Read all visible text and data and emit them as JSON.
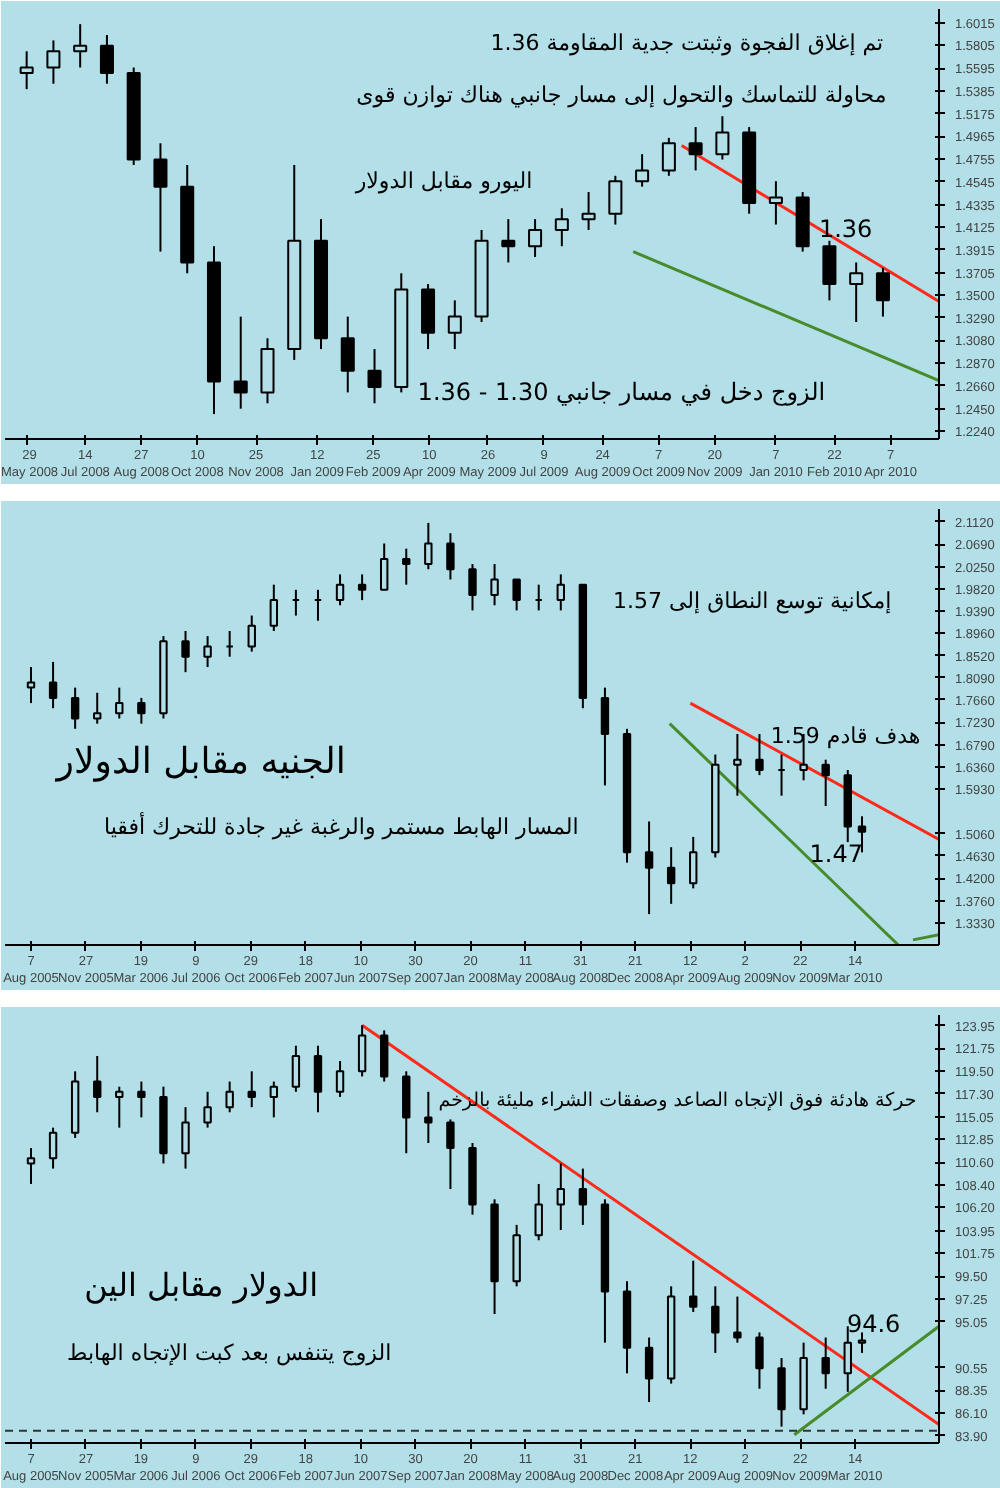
{
  "chart_data": [
    {
      "type": "candlestick",
      "color": "#000000",
      "x": [
        "2008-05-29",
        "2008-06-19",
        "2008-07-10",
        "2008-07-31",
        "2008-08-21",
        "2008-09-11",
        "2008-10-02",
        "2008-10-23",
        "2008-11-13",
        "2008-12-04",
        "2008-12-25",
        "2009-01-15",
        "2009-02-05",
        "2009-02-26",
        "2009-03-19",
        "2009-04-09",
        "2009-04-30",
        "2009-05-21",
        "2009-06-11",
        "2009-07-02",
        "2009-07-23",
        "2009-08-13",
        "2009-09-03",
        "2009-09-24",
        "2009-10-15",
        "2009-11-05",
        "2009-11-26",
        "2009-12-17",
        "2010-01-07",
        "2010-01-28",
        "2010-02-18",
        "2010-03-11",
        "2010-04-01"
      ],
      "ohlc": [
        [
          1.555,
          1.575,
          1.54,
          1.56
        ],
        [
          1.56,
          1.585,
          1.545,
          1.575
        ],
        [
          1.575,
          1.6,
          1.56,
          1.58
        ],
        [
          1.58,
          1.59,
          1.545,
          1.555
        ],
        [
          1.555,
          1.56,
          1.47,
          1.475
        ],
        [
          1.475,
          1.49,
          1.39,
          1.45
        ],
        [
          1.45,
          1.47,
          1.37,
          1.38
        ],
        [
          1.38,
          1.395,
          1.24,
          1.27
        ],
        [
          1.27,
          1.33,
          1.245,
          1.26
        ],
        [
          1.26,
          1.31,
          1.25,
          1.3
        ],
        [
          1.3,
          1.47,
          1.29,
          1.4
        ],
        [
          1.4,
          1.42,
          1.3,
          1.31
        ],
        [
          1.31,
          1.33,
          1.26,
          1.28
        ],
        [
          1.28,
          1.3,
          1.25,
          1.265
        ],
        [
          1.265,
          1.37,
          1.26,
          1.355
        ],
        [
          1.355,
          1.36,
          1.3,
          1.315
        ],
        [
          1.315,
          1.345,
          1.3,
          1.33
        ],
        [
          1.33,
          1.41,
          1.325,
          1.4
        ],
        [
          1.4,
          1.42,
          1.38,
          1.395
        ],
        [
          1.395,
          1.42,
          1.385,
          1.41
        ],
        [
          1.41,
          1.43,
          1.395,
          1.42
        ],
        [
          1.42,
          1.445,
          1.41,
          1.425
        ],
        [
          1.425,
          1.46,
          1.415,
          1.455
        ],
        [
          1.455,
          1.48,
          1.45,
          1.465
        ],
        [
          1.465,
          1.495,
          1.46,
          1.49
        ],
        [
          1.49,
          1.505,
          1.465,
          1.48
        ],
        [
          1.48,
          1.515,
          1.475,
          1.5
        ],
        [
          1.5,
          1.505,
          1.425,
          1.435
        ],
        [
          1.435,
          1.455,
          1.415,
          1.44
        ],
        [
          1.44,
          1.445,
          1.39,
          1.395
        ],
        [
          1.395,
          1.4,
          1.345,
          1.36
        ],
        [
          1.36,
          1.38,
          1.325,
          1.37
        ],
        [
          1.37,
          1.375,
          1.33,
          1.345
        ]
      ],
      "series": [
        {
          "type": "line",
          "color": "#ff2a1a",
          "x": [
            "2009-10-25",
            "2010-05-15"
          ],
          "values": [
            1.488,
            1.344
          ]
        },
        {
          "type": "line",
          "color": "#4a8a2a",
          "x": [
            "2009-09-17",
            "2010-05-15"
          ],
          "values": [
            1.39,
            1.271
          ]
        }
      ],
      "xlim": [
        "2008-05-12",
        "2010-05-15"
      ],
      "ylim": [
        1.217,
        1.614
      ],
      "xticks": [
        {
          "value": "2008-05-29",
          "label": "29 May 2008"
        },
        {
          "value": "2008-07-14",
          "label": "14 Jul 2008"
        },
        {
          "value": "2008-08-27",
          "label": "27 Aug 2008"
        },
        {
          "value": "2008-10-10",
          "label": "10 Oct 2008"
        },
        {
          "value": "2008-11-25",
          "label": "25 Nov 2008"
        },
        {
          "value": "2009-01-12",
          "label": "12 Jan 2009"
        },
        {
          "value": "2009-02-25",
          "label": "25 Feb 2009"
        },
        {
          "value": "2009-04-10",
          "label": "10 Apr 2009"
        },
        {
          "value": "2009-05-26",
          "label": "26 May 2009"
        },
        {
          "value": "2009-07-09",
          "label": "9 Jul 2009"
        },
        {
          "value": "2009-08-24",
          "label": "24 Aug 2009"
        },
        {
          "value": "2009-10-07",
          "label": "7 Oct 2009"
        },
        {
          "value": "2009-11-20",
          "label": "20 Nov 2009"
        },
        {
          "value": "2010-01-07",
          "label": "7 Jan 2010"
        },
        {
          "value": "2010-02-22",
          "label": "22 Feb 2010"
        },
        {
          "value": "2010-04-07",
          "label": "7 Apr 2010"
        }
      ],
      "yticks": [
        1.6015,
        1.5805,
        1.5595,
        1.5385,
        1.5175,
        1.4965,
        1.4755,
        1.4545,
        1.4335,
        1.4125,
        1.3915,
        1.3705,
        {
          "value": 1.35,
          "label": "1.3500"
        },
        {
          "value": 1.329,
          "label": "1.3290"
        },
        {
          "value": 1.308,
          "label": "1.3080"
        },
        {
          "value": 1.287,
          "label": "1.2870"
        },
        {
          "value": 1.266,
          "label": "1.2660"
        },
        {
          "value": 1.245,
          "label": "1.2450"
        },
        {
          "value": 1.224,
          "label": "1.2240"
        }
      ],
      "annotations": [
        "تم إغلاق الفجوة وثبتت جدية المقاومة 1.36",
        "محاولة للتماسك والتحول إلى مسار جانبي هناك توازن قوى",
        "اليورو مقابل الدولار",
        "1.36",
        "الزوج دخل في مسار جانبي 1.30 - 1.36"
      ]
    },
    {
      "type": "candlestick",
      "color": "#000000",
      "x": [
        "2005-08-07",
        "2005-09-21",
        "2005-11-05",
        "2005-12-20",
        "2006-02-03",
        "2006-03-20",
        "2006-05-04",
        "2006-06-18",
        "2006-08-02",
        "2006-09-16",
        "2006-10-31",
        "2006-12-15",
        "2007-01-29",
        "2007-03-15",
        "2007-04-29",
        "2007-06-13",
        "2007-07-28",
        "2007-09-11",
        "2007-10-26",
        "2007-12-10",
        "2008-01-24",
        "2008-03-09",
        "2008-04-23",
        "2008-06-07",
        "2008-07-22",
        "2008-09-05",
        "2008-10-20",
        "2008-12-04",
        "2009-01-18",
        "2009-03-04",
        "2009-04-18",
        "2009-06-02",
        "2009-07-17",
        "2009-08-31",
        "2009-10-15",
        "2009-11-29",
        "2010-01-13",
        "2010-02-27",
        "2010-03-28"
      ],
      "ohlc": [
        [
          1.79,
          1.83,
          1.76,
          1.8
        ],
        [
          1.8,
          1.84,
          1.75,
          1.77
        ],
        [
          1.77,
          1.79,
          1.71,
          1.73
        ],
        [
          1.73,
          1.78,
          1.72,
          1.74
        ],
        [
          1.74,
          1.79,
          1.73,
          1.76
        ],
        [
          1.76,
          1.77,
          1.72,
          1.74
        ],
        [
          1.74,
          1.89,
          1.73,
          1.88
        ],
        [
          1.88,
          1.9,
          1.82,
          1.85
        ],
        [
          1.85,
          1.89,
          1.83,
          1.87
        ],
        [
          1.87,
          1.9,
          1.85,
          1.87
        ],
        [
          1.87,
          1.93,
          1.86,
          1.91
        ],
        [
          1.91,
          1.99,
          1.9,
          1.96
        ],
        [
          1.96,
          1.98,
          1.93,
          1.96
        ],
        [
          1.96,
          1.98,
          1.92,
          1.96
        ],
        [
          1.96,
          2.01,
          1.95,
          1.99
        ],
        [
          1.99,
          2.01,
          1.96,
          1.98
        ],
        [
          1.98,
          2.07,
          1.98,
          2.04
        ],
        [
          2.04,
          2.06,
          1.99,
          2.03
        ],
        [
          2.03,
          2.11,
          2.02,
          2.07
        ],
        [
          2.07,
          2.09,
          2.0,
          2.02
        ],
        [
          2.02,
          2.03,
          1.94,
          1.97
        ],
        [
          1.97,
          2.03,
          1.95,
          2.0
        ],
        [
          2.0,
          2.0,
          1.94,
          1.96
        ],
        [
          1.96,
          1.99,
          1.94,
          1.96
        ],
        [
          1.96,
          2.01,
          1.94,
          1.99
        ],
        [
          1.99,
          1.99,
          1.75,
          1.77
        ],
        [
          1.77,
          1.79,
          1.6,
          1.7
        ],
        [
          1.7,
          1.71,
          1.45,
          1.47
        ],
        [
          1.47,
          1.53,
          1.35,
          1.44
        ],
        [
          1.44,
          1.48,
          1.37,
          1.41
        ],
        [
          1.41,
          1.5,
          1.4,
          1.47
        ],
        [
          1.47,
          1.66,
          1.46,
          1.64
        ],
        [
          1.64,
          1.7,
          1.58,
          1.65
        ],
        [
          1.65,
          1.7,
          1.62,
          1.63
        ],
        [
          1.63,
          1.66,
          1.58,
          1.63
        ],
        [
          1.63,
          1.7,
          1.61,
          1.64
        ],
        [
          1.64,
          1.65,
          1.56,
          1.62
        ],
        [
          1.62,
          1.63,
          1.49,
          1.52
        ],
        [
          1.52,
          1.54,
          1.47,
          1.51
        ]
      ],
      "series": [
        {
          "type": "line",
          "color": "#ff2a1a",
          "x": [
            "2009-04-12",
            "2010-09-01"
          ],
          "values": [
            1.76,
            1.495
          ]
        },
        {
          "type": "line",
          "color": "#4a8a2a",
          "x": [
            "2009-03-01",
            "2010-06-10"
          ],
          "values": [
            1.72,
            1.29
          ]
        },
        {
          "type": "line",
          "color": "#4a8a2a",
          "x": [
            "2010-07-10",
            "2010-09-01"
          ],
          "values": [
            1.3,
            1.31
          ]
        }
      ],
      "xlim": [
        "2005-06-15",
        "2010-09-01"
      ],
      "ylim": [
        1.29,
        2.137
      ],
      "xticks": [
        {
          "value": "2005-08-07",
          "label": "7 Aug 2005"
        },
        {
          "value": "2005-11-27",
          "label": "27 Nov 2005"
        },
        {
          "value": "2006-03-19",
          "label": "19 Mar 2006"
        },
        {
          "value": "2006-07-09",
          "label": "9 Jul 2006"
        },
        {
          "value": "2006-10-29",
          "label": "29 Oct 2006"
        },
        {
          "value": "2007-02-18",
          "label": "18 Feb 2007"
        },
        {
          "value": "2007-06-10",
          "label": "10 Jun 2007"
        },
        {
          "value": "2007-09-30",
          "label": "30 Sep 2007"
        },
        {
          "value": "2008-01-20",
          "label": "20 Jan 2008"
        },
        {
          "value": "2008-05-11",
          "label": "11 May 2008"
        },
        {
          "value": "2008-08-31",
          "label": "31 Aug 2008"
        },
        {
          "value": "2008-12-21",
          "label": "21 Dec 2008"
        },
        {
          "value": "2009-04-12",
          "label": "12 Apr 2009"
        },
        {
          "value": "2009-08-02",
          "label": "2 Aug 2009"
        },
        {
          "value": "2009-11-22",
          "label": "22 Nov 2009"
        },
        {
          "value": "2010-03-14",
          "label": "14 Mar 2010"
        }
      ],
      "yticks": [
        {
          "value": 2.112,
          "label": "2.1120"
        },
        {
          "value": 2.069,
          "label": "2.0690"
        },
        {
          "value": 2.025,
          "label": "2.0250"
        },
        {
          "value": 1.982,
          "label": "1.9820"
        },
        {
          "value": 1.939,
          "label": "1.9390"
        },
        {
          "value": 1.896,
          "label": "1.8960"
        },
        {
          "value": 1.852,
          "label": "1.8520"
        },
        {
          "value": 1.809,
          "label": "1.8090"
        },
        {
          "value": 1.766,
          "label": "1.7660"
        },
        {
          "value": 1.723,
          "label": "1.7230"
        },
        {
          "value": 1.679,
          "label": "1.6790"
        },
        {
          "value": 1.636,
          "label": "1.6360"
        },
        {
          "value": 1.593,
          "label": "1.5930"
        },
        {
          "value": 1.506,
          "label": "1.5060"
        },
        {
          "value": 1.463,
          "label": "1.4630"
        },
        {
          "value": 1.42,
          "label": "1.4200"
        },
        {
          "value": 1.376,
          "label": "1.3760"
        },
        {
          "value": 1.333,
          "label": "1.3330"
        }
      ],
      "annotations": [
        "إمكانية توسع النطاق إلى 1.57",
        "الجنيه مقابل الدولار",
        "هدف قادم 1.59",
        "المسار الهابط مستمر والرغبة غير جادة للتحرك أفقيا",
        "1.47"
      ]
    },
    {
      "type": "candlestick",
      "color": "#000000",
      "x": [
        "2005-08-07",
        "2005-09-21",
        "2005-11-05",
        "2005-12-20",
        "2006-02-03",
        "2006-03-20",
        "2006-05-04",
        "2006-06-18",
        "2006-08-02",
        "2006-09-16",
        "2006-10-31",
        "2006-12-15",
        "2007-01-29",
        "2007-03-15",
        "2007-04-29",
        "2007-06-13",
        "2007-07-28",
        "2007-09-11",
        "2007-10-26",
        "2007-12-10",
        "2008-01-24",
        "2008-03-09",
        "2008-04-23",
        "2008-06-07",
        "2008-07-22",
        "2008-09-05",
        "2008-10-20",
        "2008-12-04",
        "2009-01-18",
        "2009-03-04",
        "2009-04-18",
        "2009-06-02",
        "2009-07-17",
        "2009-08-31",
        "2009-10-15",
        "2009-11-29",
        "2010-01-13",
        "2010-02-27",
        "2010-03-28"
      ],
      "ohlc": [
        [
          110.5,
          112.0,
          108.5,
          111.0
        ],
        [
          111.0,
          114.0,
          110.0,
          113.5
        ],
        [
          113.5,
          119.5,
          113.0,
          118.5
        ],
        [
          118.5,
          121.0,
          115.5,
          117.0
        ],
        [
          117.0,
          118.0,
          114.0,
          117.5
        ],
        [
          117.5,
          118.5,
          115.0,
          117.0
        ],
        [
          117.0,
          118.0,
          110.5,
          111.5
        ],
        [
          111.5,
          116.0,
          110.0,
          114.5
        ],
        [
          114.5,
          117.5,
          114.0,
          116.0
        ],
        [
          116.0,
          118.5,
          115.5,
          117.5
        ],
        [
          117.5,
          119.5,
          116.0,
          117.0
        ],
        [
          117.0,
          118.5,
          115.0,
          118.0
        ],
        [
          118.0,
          122.0,
          117.5,
          121.0
        ],
        [
          121.0,
          122.0,
          115.5,
          117.5
        ],
        [
          117.5,
          120.5,
          117.0,
          119.5
        ],
        [
          119.5,
          124.0,
          119.0,
          123.0
        ],
        [
          123.0,
          123.5,
          118.5,
          119.0
        ],
        [
          119.0,
          119.5,
          111.5,
          115.0
        ],
        [
          115.0,
          117.5,
          112.5,
          114.5
        ],
        [
          114.5,
          114.8,
          108.0,
          112.0
        ],
        [
          112.0,
          112.5,
          105.5,
          106.5
        ],
        [
          106.5,
          107.0,
          95.8,
          99.0
        ],
        [
          99.0,
          104.5,
          98.5,
          103.5
        ],
        [
          103.5,
          108.5,
          103.0,
          106.5
        ],
        [
          106.5,
          110.5,
          104.0,
          108.0
        ],
        [
          108.0,
          110.0,
          104.5,
          106.5
        ],
        [
          106.5,
          107.0,
          93.0,
          98.0
        ],
        [
          98.0,
          99.0,
          90.0,
          92.5
        ],
        [
          92.5,
          93.5,
          87.2,
          89.5
        ],
        [
          89.5,
          98.5,
          89.0,
          97.5
        ],
        [
          97.5,
          101.0,
          96.0,
          96.5
        ],
        [
          96.5,
          98.5,
          92.0,
          94.0
        ],
        [
          94.0,
          97.5,
          93.0,
          93.5
        ],
        [
          93.5,
          94.0,
          88.5,
          90.5
        ],
        [
          90.5,
          91.5,
          84.8,
          86.5
        ],
        [
          86.5,
          93.0,
          86.0,
          91.5
        ],
        [
          91.5,
          93.5,
          88.5,
          90.0
        ],
        [
          90.0,
          94.6,
          88.2,
          93.0
        ],
        [
          93.0,
          94.0,
          92.0,
          93.2
        ]
      ],
      "series": [
        {
          "type": "line",
          "color": "#ff2a1a",
          "x": [
            "2007-06-13",
            "2010-09-01"
          ],
          "values": [
            124.0,
            85.0
          ]
        },
        {
          "type": "line",
          "color": "#4a8a2a",
          "x": [
            "2009-11-10",
            "2010-09-01"
          ],
          "values": [
            84.0,
            94.6
          ]
        }
      ],
      "ref_lines": [
        {
          "axis": "y",
          "value": 84.4,
          "color": "#333333",
          "line_style": "dashed"
        }
      ],
      "xlim": [
        "2005-06-15",
        "2010-09-01"
      ],
      "ylim": [
        83.2,
        125.0
      ],
      "xticks": [
        {
          "value": "2005-08-07",
          "label": "7 Aug 2005"
        },
        {
          "value": "2005-11-27",
          "label": "27 Nov 2005"
        },
        {
          "value": "2006-03-19",
          "label": "19 Mar 2006"
        },
        {
          "value": "2006-07-09",
          "label": "9 Jul 2006"
        },
        {
          "value": "2006-10-29",
          "label": "29 Oct 2006"
        },
        {
          "value": "2007-02-18",
          "label": "18 Feb 2007"
        },
        {
          "value": "2007-06-10",
          "label": "10 Jun 2007"
        },
        {
          "value": "2007-09-30",
          "label": "30 Sep 2007"
        },
        {
          "value": "2008-01-20",
          "label": "20 Jan 2008"
        },
        {
          "value": "2008-05-11",
          "label": "11 May 2008"
        },
        {
          "value": "2008-08-31",
          "label": "31 Aug 2008"
        },
        {
          "value": "2008-12-21",
          "label": "21 Dec 2008"
        },
        {
          "value": "2009-04-12",
          "label": "12 Apr 2009"
        },
        {
          "value": "2009-08-02",
          "label": "2 Aug 2009"
        },
        {
          "value": "2009-11-22",
          "label": "22 Nov 2009"
        },
        {
          "value": "2010-03-14",
          "label": "14 Mar 2010"
        }
      ],
      "yticks": [
        123.95,
        121.75,
        {
          "value": 119.5,
          "label": "119.50"
        },
        {
          "value": 117.3,
          "label": "117.30"
        },
        115.05,
        112.85,
        {
          "value": 110.6,
          "label": "110.60"
        },
        {
          "value": 108.4,
          "label": "108.40"
        },
        {
          "value": 106.2,
          "label": "106.20"
        },
        103.95,
        101.75,
        {
          "value": 99.5,
          "label": "99.50"
        },
        97.25,
        95.05,
        90.55,
        88.35,
        {
          "value": 86.1,
          "label": "86.10"
        },
        {
          "value": 83.9,
          "label": "83.90"
        }
      ],
      "annotations": [
        "حركة هادئة فوق الإتجاه الصاعد وصفقات الشراء مليئة بالزخم",
        "الدولار مقابل الين",
        "الزوج يتنفس بعد كبت الإتجاه الهابط",
        "94.6"
      ]
    }
  ]
}
